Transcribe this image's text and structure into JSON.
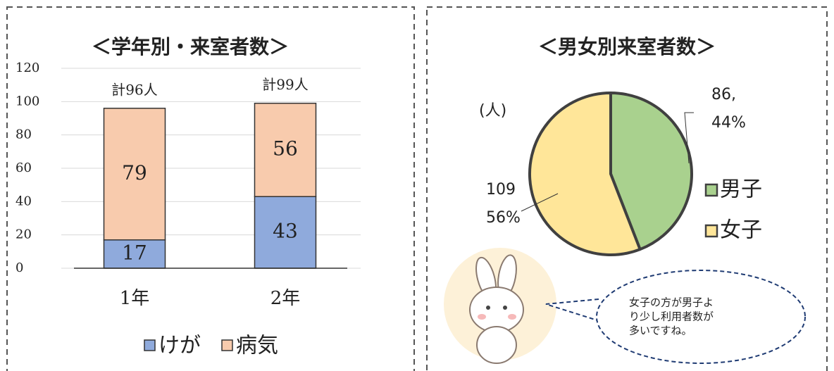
{
  "chart_data": [
    {
      "type": "bar",
      "stacked": true,
      "title": "＜学年別・来室者数＞",
      "categories": [
        "1年",
        "2年"
      ],
      "series": [
        {
          "name": "けが",
          "color": "#8faadc",
          "values": [
            17,
            43
          ]
        },
        {
          "name": "病気",
          "color": "#f8cbad",
          "values": [
            79,
            56
          ]
        }
      ],
      "total_labels": [
        "計96人",
        "計99人"
      ],
      "ylim": [
        0,
        120
      ],
      "yticks": [
        0,
        20,
        40,
        60,
        80,
        100,
        120
      ],
      "grid": true,
      "legend": "bottom"
    },
    {
      "type": "pie",
      "title": "＜男女別来室者数＞",
      "unit_label": "(人)",
      "categories": [
        "男子",
        "女子"
      ],
      "values": [
        86,
        109
      ],
      "value_labels": [
        "86,",
        "109"
      ],
      "percent_labels": [
        "44%",
        "56%"
      ],
      "colors": [
        "#a9d18e",
        "#ffe699"
      ],
      "legend": "right",
      "note": [
        "女子の方が男子よ",
        "り少し利用者数が",
        "多いですね。"
      ]
    }
  ]
}
